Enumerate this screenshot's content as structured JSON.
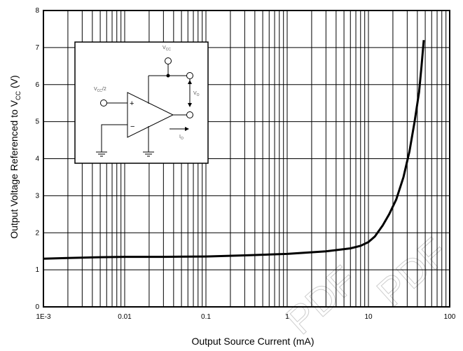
{
  "chart_data": {
    "type": "line",
    "title": "",
    "xlabel": "Output Source Current (mA)",
    "ylabel_main": "Output Voltage Referenced to V",
    "ylabel_sub": "CC",
    "ylabel_unit": "(V)",
    "xscale": "log",
    "xlim": [
      0.001,
      100
    ],
    "ylim": [
      0,
      8
    ],
    "grid": true,
    "x_tick_labels": [
      "1E-3",
      "0.01",
      "0.1",
      "1",
      "10",
      "100"
    ],
    "y_tick_labels": [
      "0",
      "1",
      "2",
      "3",
      "4",
      "5",
      "6",
      "7",
      "8"
    ],
    "series": [
      {
        "x": [
          0.001,
          0.002,
          0.005,
          0.01,
          0.03,
          0.1,
          0.3,
          1,
          3,
          6,
          8,
          10,
          12,
          15,
          18,
          22,
          27,
          32,
          37,
          42,
          45,
          48
        ],
        "y": [
          1.3,
          1.32,
          1.34,
          1.35,
          1.35,
          1.36,
          1.39,
          1.43,
          1.5,
          1.58,
          1.65,
          1.75,
          1.9,
          2.2,
          2.5,
          2.9,
          3.5,
          4.2,
          5.0,
          5.8,
          6.5,
          7.2
        ]
      }
    ],
    "inset": {
      "labels": {
        "supply": "V",
        "supply_sub": "CC",
        "input": "V",
        "input_sub": "CC",
        "input_suffix": "/2",
        "vo": "V",
        "vo_sub": "O",
        "io": "I",
        "io_sub": "O",
        "plus": "+",
        "minus": "−"
      }
    },
    "watermark": "PDF"
  }
}
